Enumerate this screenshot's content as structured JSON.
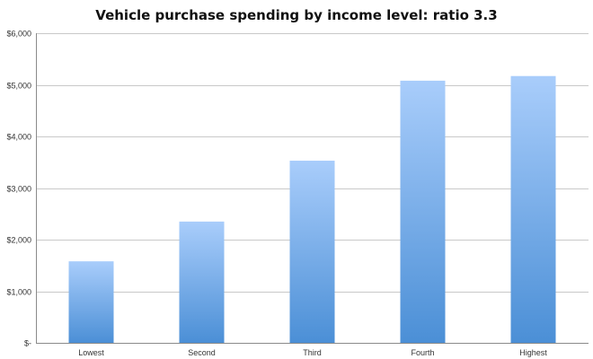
{
  "chart_data": {
    "type": "bar",
    "title": "Vehicle purchase spending by income level: ratio 3.3",
    "xlabel": "",
    "ylabel": "",
    "categories": [
      "Lowest",
      "Second",
      "Third",
      "Fourth",
      "Highest"
    ],
    "values": [
      1580,
      2350,
      3530,
      5080,
      5170
    ],
    "ylim": [
      0,
      6000
    ],
    "y_ticks": [
      0,
      1000,
      2000,
      3000,
      4000,
      5000,
      6000
    ],
    "y_tick_labels": [
      "$-",
      "$1,000",
      "$2,000",
      "$3,000",
      "$4,000",
      "$5,000",
      "$6,000"
    ],
    "grid": true,
    "legend": "none",
    "bar_color_top": "#a9cdfb",
    "bar_color_bottom": "#4b8fd6"
  }
}
